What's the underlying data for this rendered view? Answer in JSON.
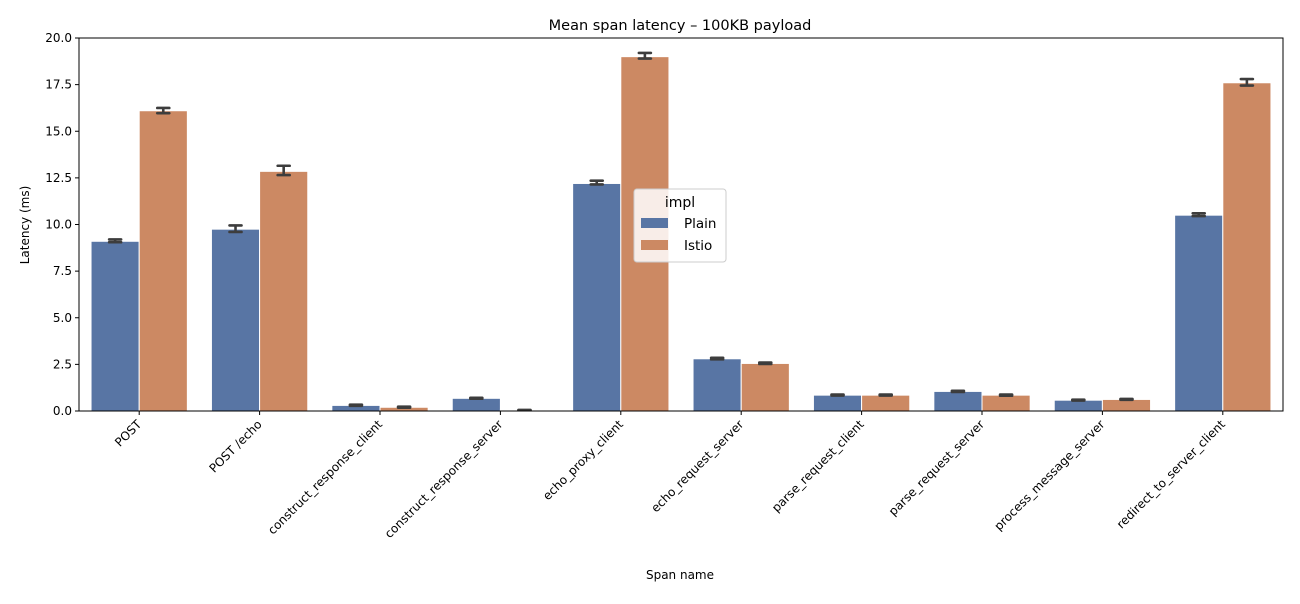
{
  "chart_data": {
    "type": "bar",
    "title": "Mean span latency – 100KB payload",
    "xlabel": "Span name",
    "ylabel": "Latency (ms)",
    "ylim": [
      0,
      20.0
    ],
    "yticks": [
      "0.0",
      "2.5",
      "5.0",
      "7.5",
      "10.0",
      "12.5",
      "15.0",
      "17.5",
      "20.0"
    ],
    "categories": [
      "POST",
      "POST /echo",
      "construct_response_client",
      "construct_response_server",
      "echo_proxy_client",
      "echo_request_server",
      "parse_request_client",
      "parse_request_server",
      "process_message_server",
      "redirect_to_server_client"
    ],
    "legend": {
      "title": "impl",
      "placement": "center"
    },
    "grid": false,
    "series": [
      {
        "name": "Plain",
        "color": "#5875a4",
        "values": [
          9.1,
          9.75,
          0.3,
          0.68,
          12.2,
          2.8,
          0.85,
          1.05,
          0.58,
          10.5
        ],
        "ci": [
          [
            9.05,
            9.2
          ],
          [
            9.6,
            9.95
          ],
          [
            0.28,
            0.34
          ],
          [
            0.66,
            0.71
          ],
          [
            12.15,
            12.35
          ],
          [
            2.77,
            2.85
          ],
          [
            0.83,
            0.88
          ],
          [
            1.02,
            1.08
          ],
          [
            0.56,
            0.61
          ],
          [
            10.45,
            10.6
          ]
        ]
      },
      {
        "name": "Istio",
        "color": "#cc8963",
        "values": [
          16.1,
          12.85,
          0.2,
          0.05,
          19.0,
          2.55,
          0.85,
          0.85,
          0.62,
          17.6
        ],
        "ci": [
          [
            15.97,
            16.25
          ],
          [
            12.65,
            13.15
          ],
          [
            0.18,
            0.23
          ],
          [
            0.04,
            0.06
          ],
          [
            18.9,
            19.2
          ],
          [
            2.52,
            2.6
          ],
          [
            0.83,
            0.88
          ],
          [
            0.82,
            0.88
          ],
          [
            0.6,
            0.65
          ],
          [
            17.45,
            17.8
          ]
        ]
      }
    ]
  }
}
